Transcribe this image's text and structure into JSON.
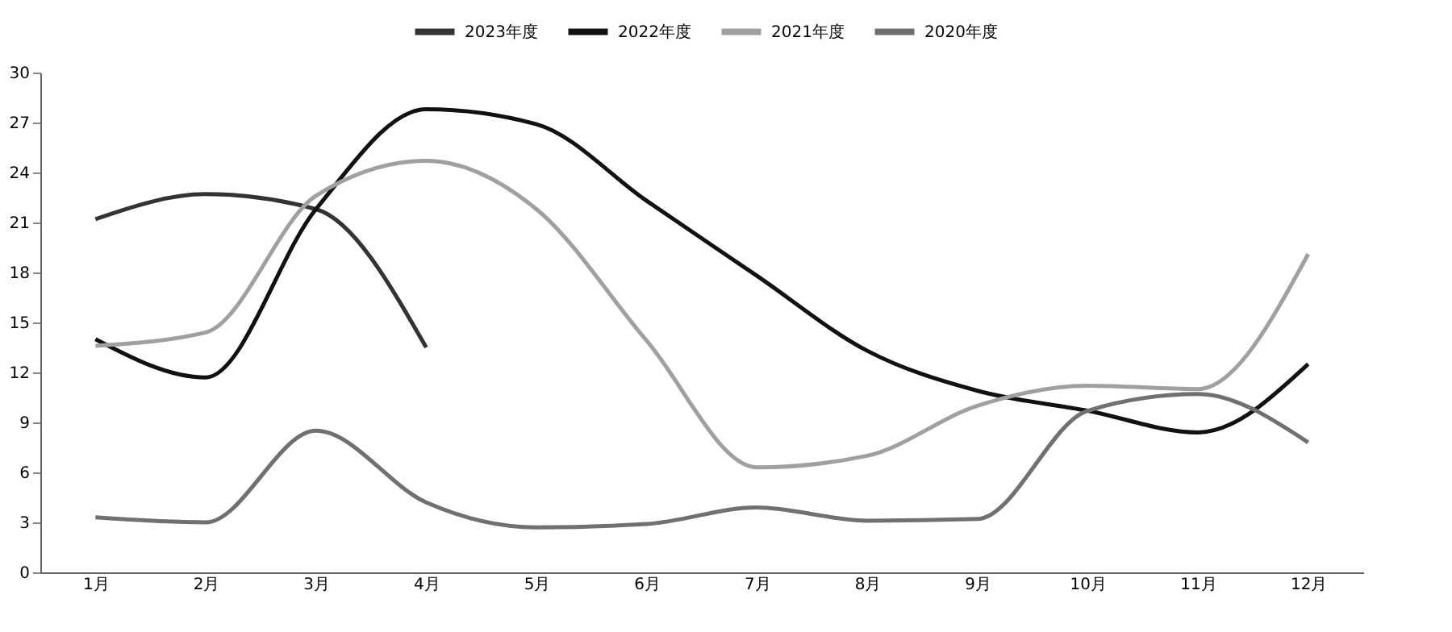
{
  "chart_data": {
    "type": "line",
    "categories": [
      "1月",
      "2月",
      "3月",
      "4月",
      "5月",
      "6月",
      "7月",
      "8月",
      "9月",
      "10月",
      "11月",
      "12月"
    ],
    "series": [
      {
        "name": "2023年度",
        "color": "#333333",
        "values": [
          21.2,
          22.7,
          21.8,
          13.5,
          null,
          null,
          null,
          null,
          null,
          null,
          null,
          null
        ]
      },
      {
        "name": "2022年度",
        "color": "#111111",
        "values": [
          14,
          11.7,
          21.8,
          27.8,
          26.9,
          22.3,
          17.8,
          13.3,
          10.9,
          9.7,
          8.4,
          12.5
        ]
      },
      {
        "name": "2021年度",
        "color": "#a0a0a0",
        "values": [
          13.6,
          14.4,
          22.6,
          24.7,
          21.8,
          13.9,
          6.3,
          7,
          10,
          11.2,
          11,
          19.1
        ]
      },
      {
        "name": "2020年度",
        "color": "#707070",
        "values": [
          3.3,
          3,
          8.5,
          4.2,
          2.7,
          2.9,
          3.9,
          3.1,
          3.2,
          9.7,
          10.7,
          7.8
        ]
      }
    ],
    "ylim": [
      0,
      30
    ],
    "yticks": [
      0,
      3,
      6,
      9,
      12,
      15,
      18,
      21,
      24,
      27,
      30
    ],
    "grid": false,
    "legend": "top",
    "marker": "none",
    "line_style": "solid"
  }
}
